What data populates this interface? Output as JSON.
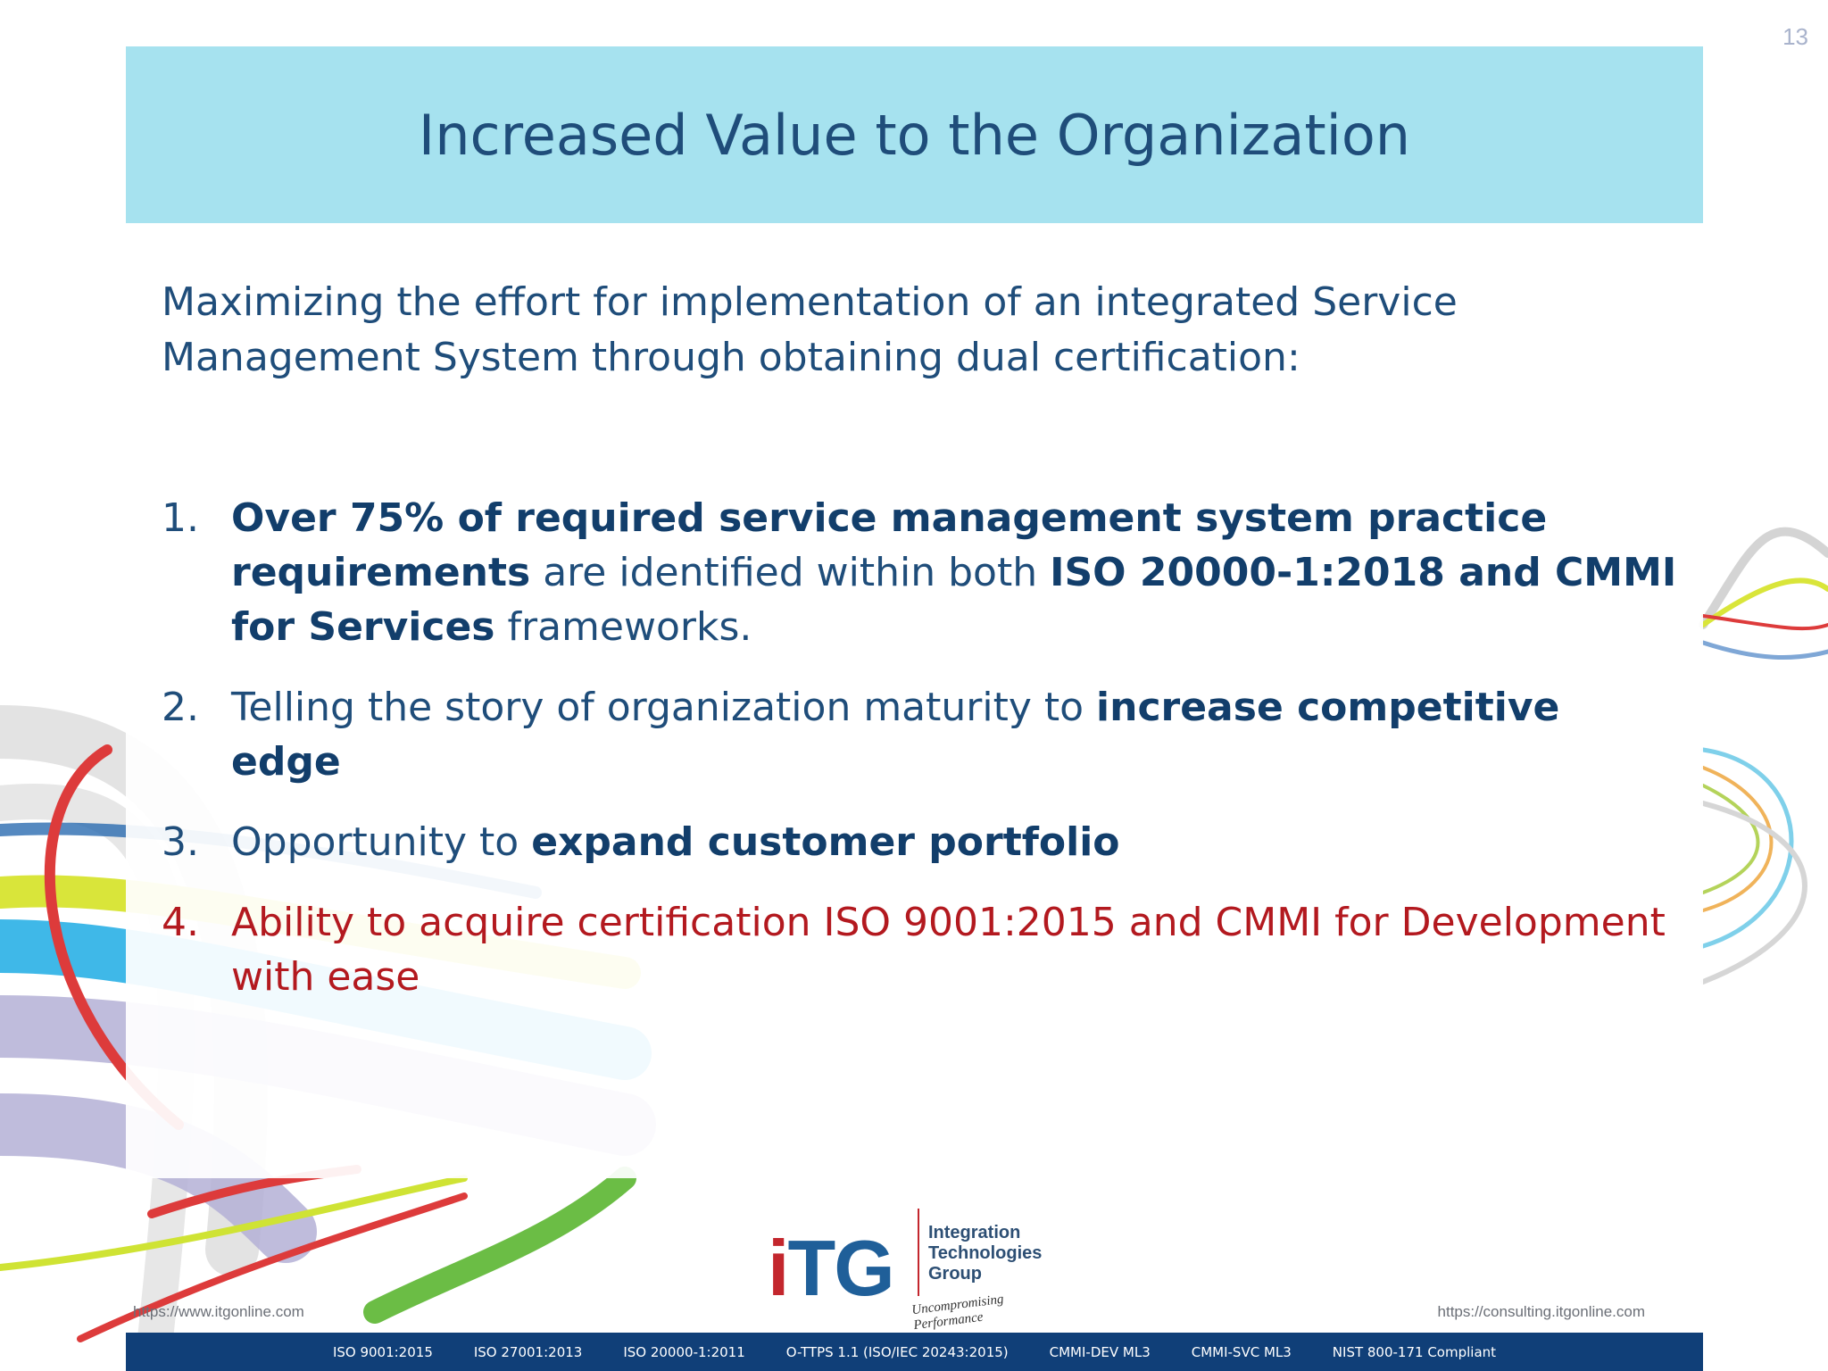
{
  "page_number": "13",
  "title": "Increased Value to the Organization",
  "intro": "Maximizing the effort for implementation of an integrated Service Management System through obtaining dual certification:",
  "points": [
    {
      "number": "1.",
      "bold_1": "Over 75% of required service management system practice requirements",
      "text_1": " are identified within both ",
      "bold_2": "ISO 20000-1:2018 and CMMI for Services",
      "text_2": " frameworks."
    },
    {
      "number": "2.",
      "text_1": "Telling the story of organization maturity to ",
      "bold_1": "increase competitive edge"
    },
    {
      "number": "3.",
      "text_1": "Opportunity to ",
      "bold_1": "expand customer portfolio"
    },
    {
      "number": "4.",
      "text_1": "Ability to acquire certification ISO 9001:2015 and CMMI for Development with ease"
    }
  ],
  "logo": {
    "mark": "TG",
    "mark_i": "i",
    "words": [
      "Integration",
      "Technologies",
      "Group"
    ],
    "tagline": "Uncompromising Performance"
  },
  "url_left": "https://www.itgonline.com",
  "url_right": "https://consulting.itgonline.com",
  "footer_items": [
    "ISO 9001:2015",
    "ISO 27001:2013",
    "ISO 20000-1:2011",
    "O-TTPS 1.1 (ISO/IEC 20243:2015)",
    "CMMI-DEV ML3",
    "CMMI-SVC ML3",
    "NIST 800-171 Compliant"
  ],
  "colors": {
    "title_band": "#a6e2ef",
    "text_navy": "#1f4d7a",
    "highlight_red": "#b3191f",
    "footer_navy": "#103f78"
  }
}
